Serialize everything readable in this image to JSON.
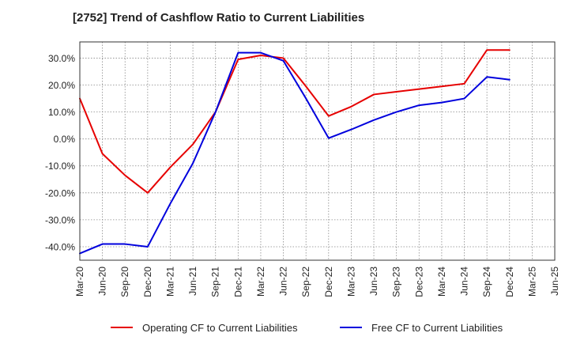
{
  "chart_data": {
    "type": "line",
    "title": "[2752]  Trend of Cashflow Ratio to Current Liabilities",
    "xlabel": "",
    "ylabel": "",
    "ylim": [
      -45,
      36
    ],
    "y_ticks": [
      30,
      20,
      10,
      0,
      -10,
      -20,
      -30,
      -40
    ],
    "y_tick_labels": [
      "30.0%",
      "20.0%",
      "10.0%",
      "0.0%",
      "-10.0%",
      "-20.0%",
      "-30.0%",
      "-40.0%"
    ],
    "x_tick_labels": [
      "Mar-20",
      "Jun-20",
      "Sep-20",
      "Dec-20",
      "Mar-21",
      "Jun-21",
      "Sep-21",
      "Dec-21",
      "Mar-22",
      "Jun-22",
      "Sep-22",
      "Dec-22",
      "Mar-23",
      "Jun-23",
      "Sep-23",
      "Dec-23",
      "Mar-24",
      "Jun-24",
      "Sep-24",
      "Dec-24",
      "Mar-25",
      "Jun-25"
    ],
    "grid": true,
    "legend_position": "bottom",
    "series": [
      {
        "name": "Operating CF to Current Liabilities",
        "color": "#e60000",
        "x": [
          "Mar-20",
          "Jun-20",
          "Sep-20",
          "Dec-20",
          "Mar-21",
          "Jun-21",
          "Sep-21",
          "Dec-21",
          "Mar-22",
          "Jun-22",
          "Sep-22",
          "Dec-22",
          "Mar-23",
          "Jun-23",
          "Sep-23",
          "Dec-23",
          "Mar-24",
          "Jun-24",
          "Sep-24",
          "Dec-24"
        ],
        "values": [
          15.0,
          -5.5,
          -13.5,
          -20.0,
          -10.5,
          -2.0,
          10.0,
          29.5,
          31.0,
          30.0,
          19.5,
          8.5,
          12.0,
          16.5,
          17.5,
          18.5,
          19.5,
          20.5,
          33.0,
          33.0
        ]
      },
      {
        "name": "Free CF to Current Liabilities",
        "color": "#0000dd",
        "x": [
          "Mar-20",
          "Jun-20",
          "Sep-20",
          "Dec-20",
          "Mar-21",
          "Jun-21",
          "Sep-21",
          "Dec-21",
          "Mar-22",
          "Jun-22",
          "Sep-22",
          "Dec-22",
          "Mar-23",
          "Jun-23",
          "Sep-23",
          "Dec-23",
          "Mar-24",
          "Jun-24",
          "Sep-24",
          "Dec-24"
        ],
        "values": [
          -42.5,
          -39.0,
          -39.0,
          -40.0,
          -24.0,
          -9.0,
          10.0,
          32.0,
          32.0,
          29.0,
          15.0,
          0.3,
          3.5,
          7.0,
          10.0,
          12.5,
          13.5,
          15.0,
          23.0,
          22.0
        ]
      }
    ]
  }
}
